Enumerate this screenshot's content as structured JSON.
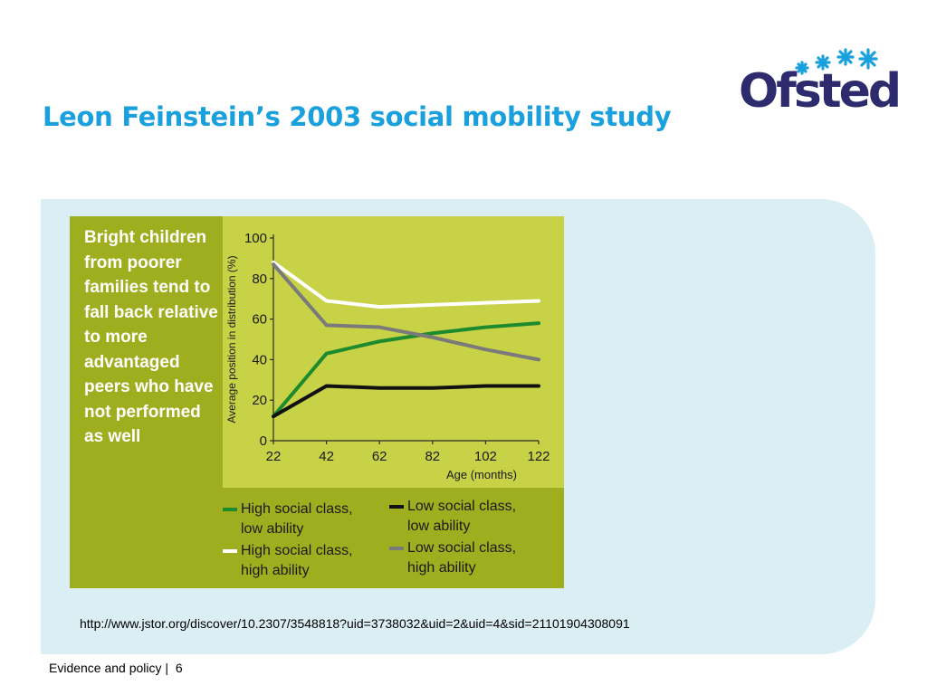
{
  "slide": {
    "title": "Leon Feinstein’s 2003 social mobility study",
    "source_url": "http://www.jstor.org/discover/10.2307/3548818?uid=3738032&uid=2&uid=4&sid=21101904308091",
    "footer_label": "Evidence and policy",
    "footer_sep": "|",
    "page_number": "6"
  },
  "logo": {
    "text": "Ofsted"
  },
  "figure": {
    "caption": "Bright children from poorer families tend to fall back relative to more advantaged peers who have not performed as well"
  },
  "colors": {
    "accent_title": "#1aa0dc",
    "panel": "#dbeef3",
    "figure_bg": "#9fae1f",
    "plot_bg": "#c7d247",
    "logo_text": "#2d2a6e",
    "logo_stars": "#1aa0dc"
  },
  "chart_data": {
    "type": "line",
    "title": "",
    "xlabel": "Age (months)",
    "ylabel": "Average position in distribution (%)",
    "x": [
      22,
      42,
      62,
      82,
      102,
      122
    ],
    "xticks": [
      "22",
      "42",
      "62",
      "82",
      "102",
      "122"
    ],
    "yticks": [
      "0",
      "20",
      "40",
      "60",
      "80",
      "100"
    ],
    "xlim": [
      22,
      122
    ],
    "ylim": [
      0,
      100
    ],
    "grid": false,
    "legend_position": "bottom",
    "series": [
      {
        "name": "High social class, low ability",
        "legend": [
          "High social class,",
          "low ability"
        ],
        "color": "#1e8a2e",
        "values": [
          12,
          43,
          49,
          53,
          56,
          58
        ]
      },
      {
        "name": "High social class, high ability",
        "legend": [
          "High social class,",
          "high ability"
        ],
        "color": "#ffffff",
        "values": [
          88,
          69,
          66,
          67,
          68,
          69
        ]
      },
      {
        "name": "Low social class, low ability",
        "legend": [
          "Low social class,",
          "low ability"
        ],
        "color": "#111111",
        "values": [
          12,
          27,
          26,
          26,
          27,
          27
        ]
      },
      {
        "name": "Low social class, high ability",
        "legend": [
          "Low social class,",
          "high ability"
        ],
        "color": "#7a7a7a",
        "values": [
          87,
          57,
          56,
          51,
          45,
          40
        ]
      }
    ]
  }
}
